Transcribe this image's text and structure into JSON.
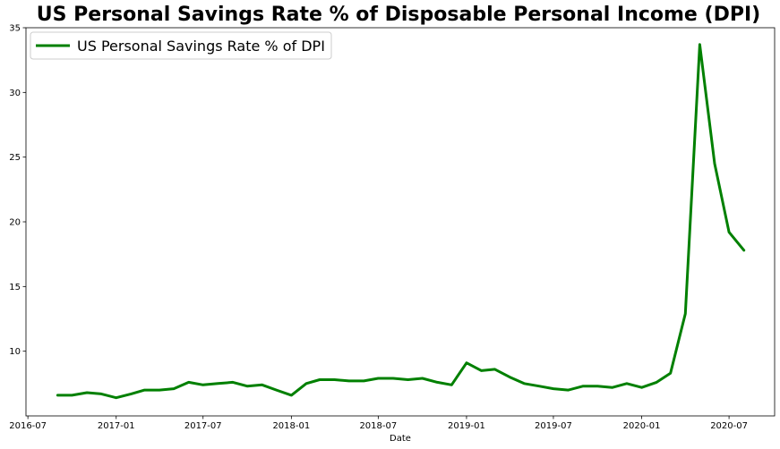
{
  "chart_data": {
    "type": "line",
    "title": "US Personal Savings Rate % of Disposable Personal Income (DPI)",
    "xlabel": "Date",
    "ylabel": "",
    "xlim": [
      "2016-06-27",
      "2020-10-04"
    ],
    "ylim": [
      5.0,
      35.0
    ],
    "x_ticks": [
      "2016-07",
      "2017-01",
      "2017-07",
      "2018-01",
      "2018-07",
      "2019-01",
      "2019-07",
      "2020-01",
      "2020-07"
    ],
    "y_ticks": [
      10,
      15,
      20,
      25,
      30,
      35
    ],
    "grid": false,
    "legend_position": "top-left",
    "series": [
      {
        "name": "US Personal Savings Rate % of DPI",
        "color": "#008000",
        "x": [
          "2016-09-01",
          "2016-10-01",
          "2016-11-01",
          "2016-12-01",
          "2017-01-01",
          "2017-02-01",
          "2017-03-01",
          "2017-04-01",
          "2017-05-01",
          "2017-06-01",
          "2017-07-01",
          "2017-08-01",
          "2017-09-01",
          "2017-10-01",
          "2017-11-01",
          "2017-12-01",
          "2018-01-01",
          "2018-02-01",
          "2018-03-01",
          "2018-04-01",
          "2018-05-01",
          "2018-06-01",
          "2018-07-01",
          "2018-08-01",
          "2018-09-01",
          "2018-10-01",
          "2018-11-01",
          "2018-12-01",
          "2019-01-01",
          "2019-02-01",
          "2019-03-01",
          "2019-04-01",
          "2019-05-01",
          "2019-06-01",
          "2019-07-01",
          "2019-08-01",
          "2019-09-01",
          "2019-10-01",
          "2019-11-01",
          "2019-12-01",
          "2020-01-01",
          "2020-02-01",
          "2020-03-01",
          "2020-04-01",
          "2020-05-01",
          "2020-06-01",
          "2020-07-01",
          "2020-08-01"
        ],
        "values": [
          6.6,
          6.6,
          6.8,
          6.7,
          6.4,
          6.7,
          7.0,
          7.0,
          7.1,
          7.6,
          7.4,
          7.5,
          7.6,
          7.3,
          7.4,
          7.0,
          6.6,
          7.5,
          7.8,
          7.8,
          7.7,
          7.7,
          7.9,
          7.9,
          7.8,
          7.9,
          7.6,
          7.4,
          9.1,
          8.5,
          8.6,
          8.0,
          7.5,
          7.3,
          7.1,
          7.0,
          7.3,
          7.3,
          7.2,
          7.5,
          7.2,
          7.6,
          8.3,
          12.9,
          33.7,
          24.5,
          19.2,
          17.8
        ]
      }
    ]
  }
}
